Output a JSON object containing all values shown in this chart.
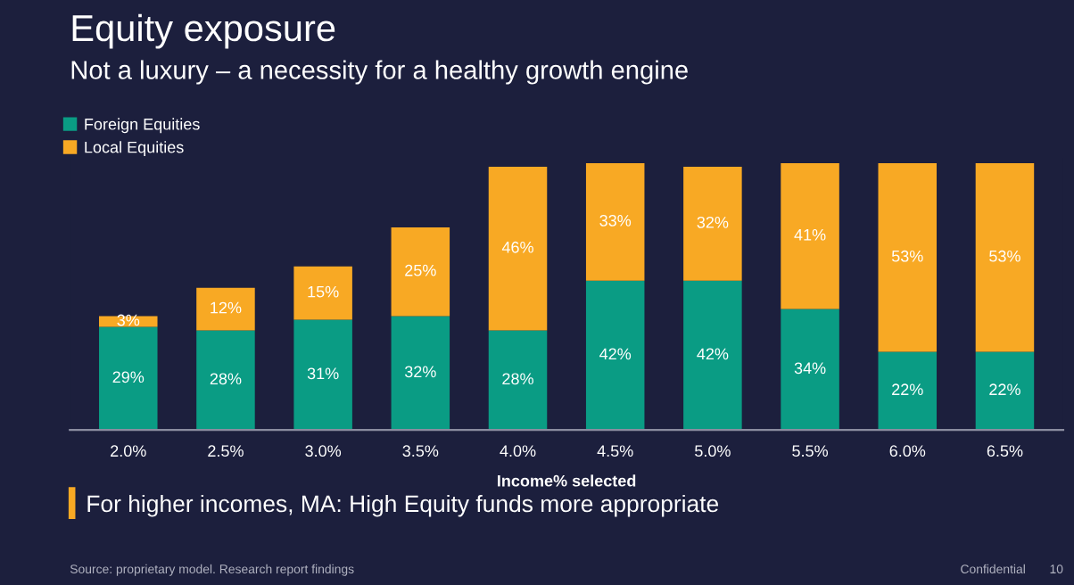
{
  "chart_data": {
    "type": "bar",
    "title": "Equity exposure",
    "subtitle": "Not a luxury – a necessity for a healthy growth engine",
    "xlabel": "Income% selected",
    "categories": [
      "2.0%",
      "2.5%",
      "3.0%",
      "3.5%",
      "4.0%",
      "4.5%",
      "5.0%",
      "5.5%",
      "6.0%",
      "6.5%"
    ],
    "stacked": true,
    "legend": "top left",
    "series": [
      {
        "name": "Foreign Equities",
        "color": "#0a9c84",
        "values": [
          29,
          28,
          31,
          32,
          28,
          42,
          42,
          34,
          22,
          22
        ],
        "value_labels": [
          "29%",
          "28%",
          "31%",
          "32%",
          "28%",
          "42%",
          "42%",
          "34%",
          "22%",
          "22%"
        ]
      },
      {
        "name": "Local Equities",
        "color": "#f8a924",
        "values": [
          3,
          12,
          15,
          25,
          46,
          33,
          32,
          41,
          53,
          53
        ],
        "value_labels": [
          "3%",
          "12%",
          "15%",
          "25%",
          "46%",
          "33%",
          "32%",
          "41%",
          "53%",
          "53%"
        ]
      }
    ],
    "annotations": [
      "For higher incomes, MA: High Equity funds more appropriate",
      "Source: proprietary model. Research report findings",
      "Confidential",
      "10"
    ]
  }
}
